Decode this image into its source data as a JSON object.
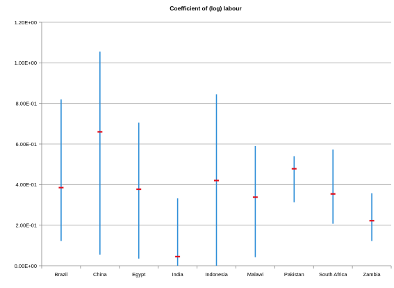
{
  "chart_data": {
    "type": "scatter",
    "title": "Coefficient of (log) labour",
    "xlabel": "",
    "ylabel": "",
    "ylim": [
      0,
      1.2
    ],
    "y_ticks": [
      0,
      0.2,
      0.4,
      0.6,
      0.8,
      1.0,
      1.2
    ],
    "y_tick_labels": [
      "0.00E+00",
      "2.00E-01",
      "4.00E-01",
      "6.00E-01",
      "8.00E-01",
      "1.00E+00",
      "1.20E+00"
    ],
    "grid": "horizontal",
    "legend": "none",
    "categories": [
      "Brazil",
      "China",
      "Egypt",
      "India",
      "Indonesia",
      "Malawi",
      "Pakistan",
      "South Africa",
      "Zambia"
    ],
    "series": [
      {
        "kind": "point-estimate",
        "color": "#e0101e",
        "values": [
          0.385,
          0.66,
          0.377,
          0.045,
          0.42,
          0.338,
          0.478,
          0.354,
          0.222
        ]
      },
      {
        "kind": "interval",
        "color": "#2f8fd8",
        "lower": [
          0.122,
          0.055,
          0.035,
          0.0,
          0.0,
          0.042,
          0.313,
          0.207,
          0.122
        ],
        "upper": [
          0.82,
          1.055,
          0.705,
          0.332,
          0.845,
          0.59,
          0.54,
          0.573,
          0.357
        ]
      }
    ]
  },
  "colors": {
    "grid": "#a6a6a6",
    "axis": "#868686",
    "text": "#000000"
  }
}
